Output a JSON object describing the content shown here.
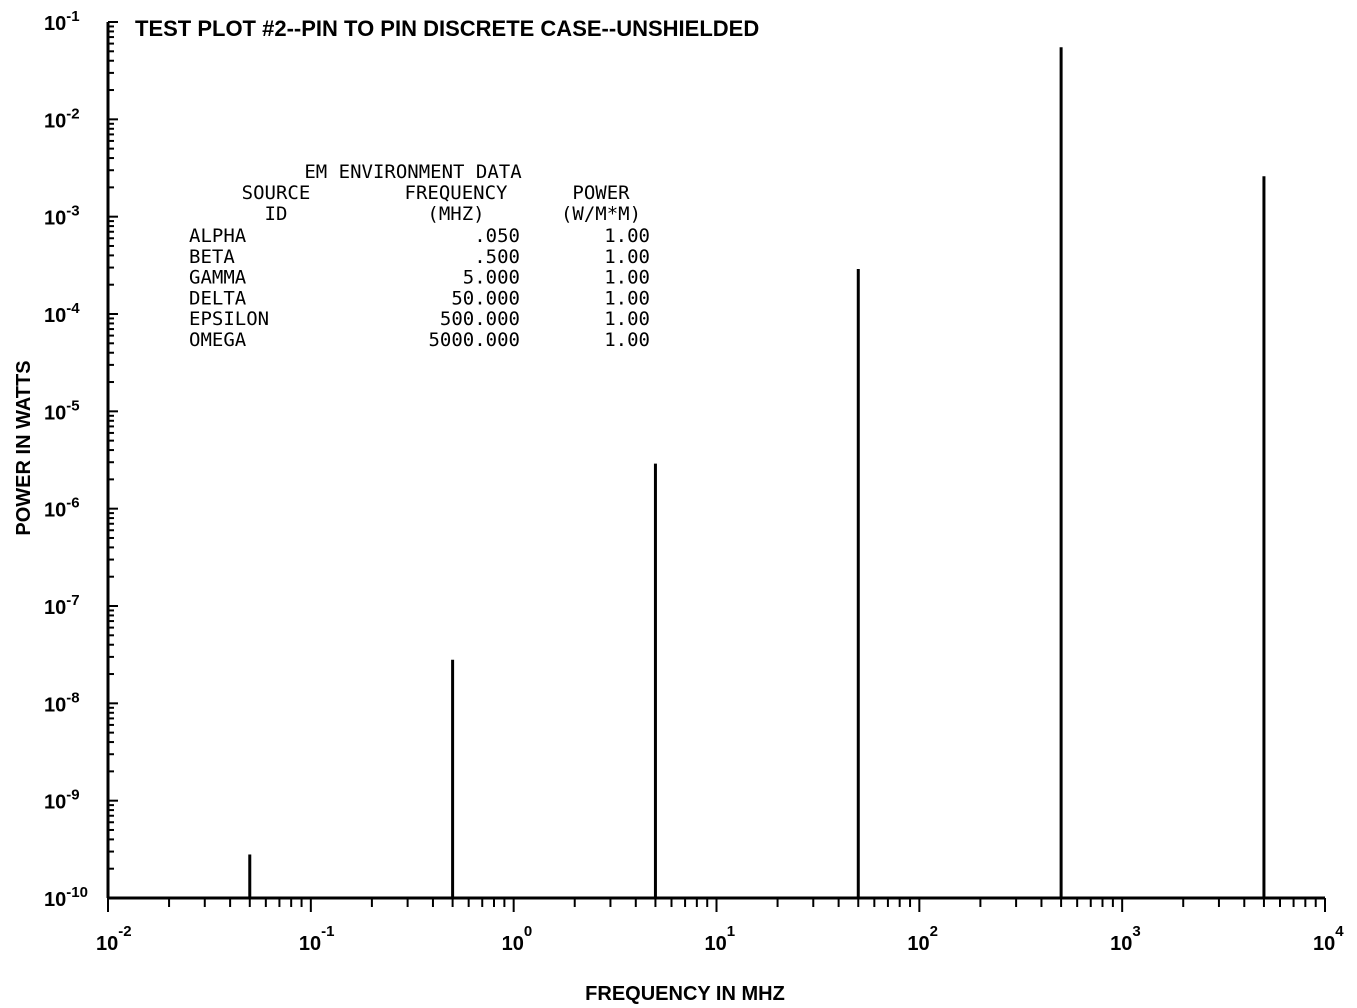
{
  "chart_data": {
    "type": "bar",
    "title": "TEST PLOT #2--PIN TO PIN DISCRETE CASE--UNSHIELDED",
    "xlabel": "FREQUENCY IN MHZ",
    "ylabel": "POWER IN WATTS",
    "x_scale": "log",
    "y_scale": "log",
    "xlim": [
      0.01,
      10000
    ],
    "ylim": [
      1e-10,
      0.1
    ],
    "x_tick_labels": [
      {
        "base": "10",
        "exp": "-2"
      },
      {
        "base": "10",
        "exp": "-1"
      },
      {
        "base": "10",
        "exp": "0"
      },
      {
        "base": "10",
        "exp": "1"
      },
      {
        "base": "10",
        "exp": "2"
      },
      {
        "base": "10",
        "exp": "3"
      },
      {
        "base": "10",
        "exp": "4"
      }
    ],
    "y_tick_labels": [
      {
        "base": "10",
        "exp": "-1"
      },
      {
        "base": "10",
        "exp": "-2"
      },
      {
        "base": "10",
        "exp": "-3"
      },
      {
        "base": "10",
        "exp": "-4"
      },
      {
        "base": "10",
        "exp": "-5"
      },
      {
        "base": "10",
        "exp": "-6"
      },
      {
        "base": "10",
        "exp": "-7"
      },
      {
        "base": "10",
        "exp": "-8"
      },
      {
        "base": "10",
        "exp": "-9"
      },
      {
        "base": "10",
        "exp": "-10"
      }
    ],
    "x": [
      0.05,
      0.5,
      5,
      50,
      500,
      5000
    ],
    "values": [
      2.8e-10,
      2.8e-08,
      2.9e-06,
      0.00029,
      0.055,
      0.0026
    ],
    "grid": false,
    "legend": "none",
    "color": "#000000"
  },
  "env_table": {
    "heading": "EM ENVIRONMENT DATA",
    "col1_header": [
      "SOURCE",
      "ID"
    ],
    "col2_header": [
      "FREQUENCY",
      "(MHZ)"
    ],
    "col3_header": [
      "POWER",
      "(W/M*M)"
    ],
    "rows": [
      {
        "id": "ALPHA",
        "freq": ".050",
        "power": "1.00"
      },
      {
        "id": "BETA",
        "freq": ".500",
        "power": "1.00"
      },
      {
        "id": "GAMMA",
        "freq": "5.000",
        "power": "1.00"
      },
      {
        "id": "DELTA",
        "freq": "50.000",
        "power": "1.00"
      },
      {
        "id": "EPSILON",
        "freq": "500.000",
        "power": "1.00"
      },
      {
        "id": "OMEGA",
        "freq": "5000.000",
        "power": "1.00"
      }
    ]
  }
}
